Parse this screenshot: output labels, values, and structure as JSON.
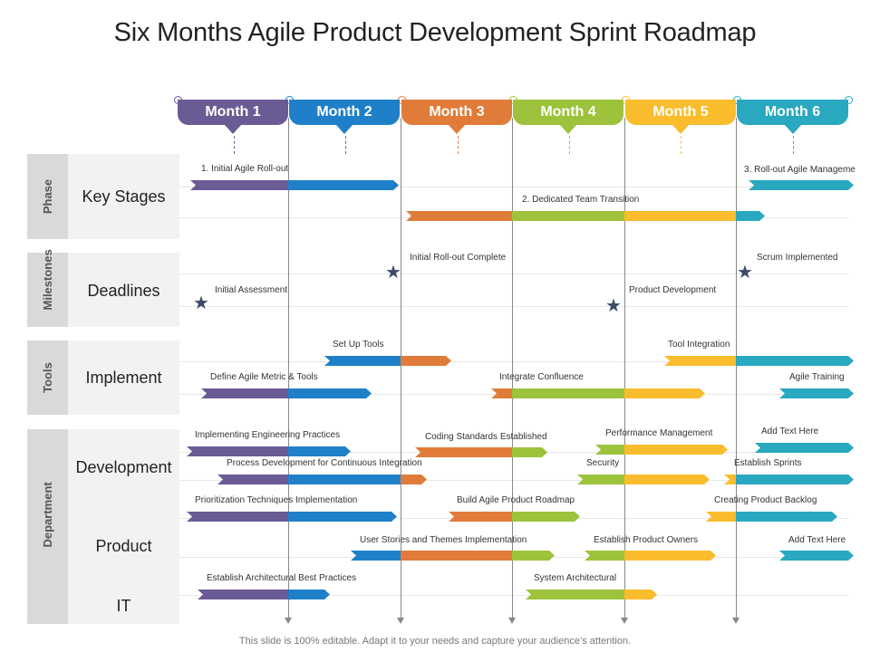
{
  "title": "Six Months Agile Product Development Sprint Roadmap",
  "footer": "This slide is 100% editable. Adapt it to your needs and capture your audience’s attention.",
  "colors": {
    "month1": "#6b5b95",
    "month2": "#1f80c9",
    "month3": "#e07b39",
    "month4": "#9cc33b",
    "month5": "#f9bc2c",
    "month6": "#29a8c0",
    "star": "#3b4a66"
  },
  "months": [
    "Month 1",
    "Month 2",
    "Month 3",
    "Month 4",
    "Month 5",
    "Month 6"
  ],
  "categories": {
    "phase": "Phase",
    "milestones": "Milestones",
    "tools": "Tools",
    "department": "Department"
  },
  "rows": {
    "key_stages": "Key Stages",
    "deadlines": "Deadlines",
    "implement": "Implement",
    "development": "Development",
    "product": "Product",
    "it": "IT"
  },
  "labels": {
    "initial_agile_rollout": "1. Initial Agile Roll-out",
    "rollout_agile_manage": "3. Roll-out Agile Manageme",
    "dedicated_team_transition": "2. Dedicated Team Transition",
    "initial_rollout_complete": "Initial Roll-out Complete",
    "scrum_implemented": "Scrum Implemented",
    "initial_assessment": "Initial Assessment",
    "product_development": "Product Development",
    "set_up_tools": "Set Up Tools",
    "tool_integration": "Tool Integration",
    "define_agile_metric": "Define Agile Metric & Tools",
    "integrate_confluence": "Integrate Confluence",
    "agile_training": "Agile Training",
    "implementing_engineering": "Implementing Engineering Practices",
    "coding_standards": "Coding Standards Established",
    "performance_management": "Performance Management",
    "add_text_here_1": "Add Text Here",
    "process_development": "Process Development for Continuous Integration",
    "security": "Security",
    "establish_sprints": "Establish Sprints",
    "prioritization": "Prioritization Techniques Implementation",
    "build_agile_roadmap": "Build Agile Product Roadmap",
    "creating_backlog": "Creating Product Backlog",
    "user_stories": "User Stories and Themes Implementation",
    "establish_owners": "Establish Product Owners",
    "add_text_here_2": "Add Text Here",
    "establish_architectural": "Establish Architectural Best Practices",
    "system_architectural": "System Architectural"
  }
}
